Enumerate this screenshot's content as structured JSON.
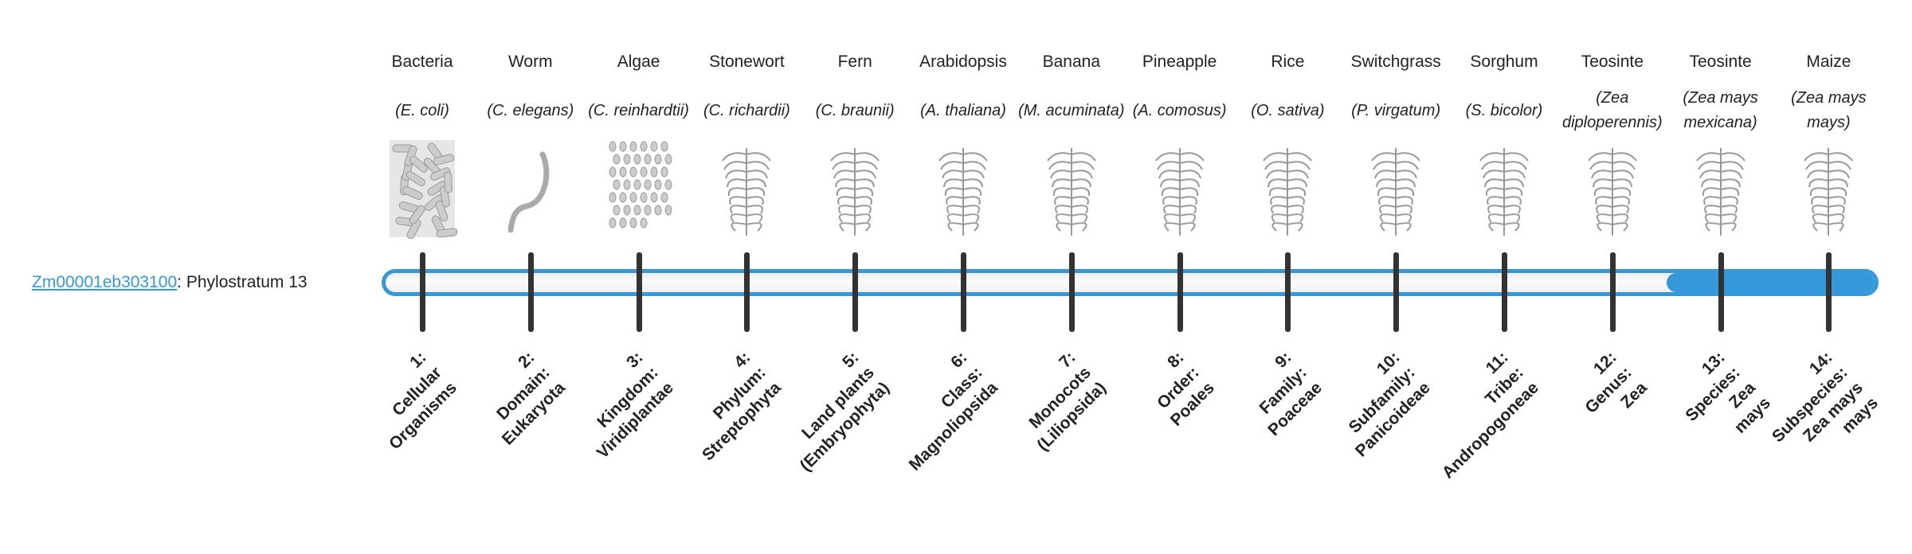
{
  "gene": {
    "id": "Zm00001eb303100",
    "separator": ":",
    "label": "Phylostratum 13"
  },
  "phylostratum": 13,
  "colors": {
    "accent": "#3498db",
    "tick": "#333333",
    "track": "#f5f5f5"
  },
  "strata": [
    {
      "name": "Bacteria",
      "species": "(E. coli)",
      "icon": "bacteria-icon",
      "lines": [
        "1:",
        "Cellular",
        "Organisms"
      ]
    },
    {
      "name": "Worm",
      "species": "(C. elegans)",
      "icon": "worm-icon",
      "lines": [
        "2:",
        "Domain:",
        "Eukaryota"
      ]
    },
    {
      "name": "Algae",
      "species": "(C. reinhardtii)",
      "icon": "algae-icon",
      "lines": [
        "3:",
        "Kingdom:",
        "Viridiplantae"
      ]
    },
    {
      "name": "Stonewort",
      "species": "(C. richardii)",
      "icon": "stonewort-icon",
      "lines": [
        "4:",
        "Phylum:",
        "Streptophyta"
      ]
    },
    {
      "name": "Fern",
      "species": "(C. braunii)",
      "icon": "fern-icon",
      "lines": [
        "5:",
        "Land plants",
        "(Embryophyta)"
      ]
    },
    {
      "name": "Arabidopsis",
      "species": "(A. thaliana)",
      "icon": "arabidopsis-icon",
      "lines": [
        "6:",
        "Class:",
        "Magnoliopsida"
      ]
    },
    {
      "name": "Banana",
      "species": "(M. acuminata)",
      "icon": "banana-icon",
      "lines": [
        "7:",
        "Monocots",
        "(Liliopsida)"
      ]
    },
    {
      "name": "Pineapple",
      "species": "(A. comosus)",
      "icon": "pineapple-icon",
      "lines": [
        "8:",
        "Order:",
        "Poales"
      ]
    },
    {
      "name": "Rice",
      "species": "(O. sativa)",
      "icon": "rice-icon",
      "lines": [
        "9:",
        "Family:",
        "Poaceae"
      ]
    },
    {
      "name": "Switchgrass",
      "species": "(P. virgatum)",
      "icon": "switchgrass-icon",
      "lines": [
        "10:",
        "Subfamily:",
        "Panicoideae"
      ]
    },
    {
      "name": "Sorghum",
      "species": "(S. bicolor)",
      "icon": "sorghum-icon",
      "lines": [
        "11:",
        "Tribe:",
        "Andropogoneae"
      ]
    },
    {
      "name": "Teosinte",
      "species": "(Zea diploperennis)",
      "icon": "teosinte-icon",
      "lines": [
        "12:",
        "Genus:",
        "Zea"
      ]
    },
    {
      "name": "Teosinte",
      "species": "(Zea mays mexicana)",
      "icon": "teosinte-mexicana-icon",
      "lines": [
        "13:",
        "Species:",
        "Zea",
        "mays"
      ]
    },
    {
      "name": "Maize",
      "species": "(Zea mays mays)",
      "icon": "maize-icon",
      "lines": [
        "14:",
        "Subspecies:",
        "Zea mays",
        "mays"
      ]
    }
  ]
}
